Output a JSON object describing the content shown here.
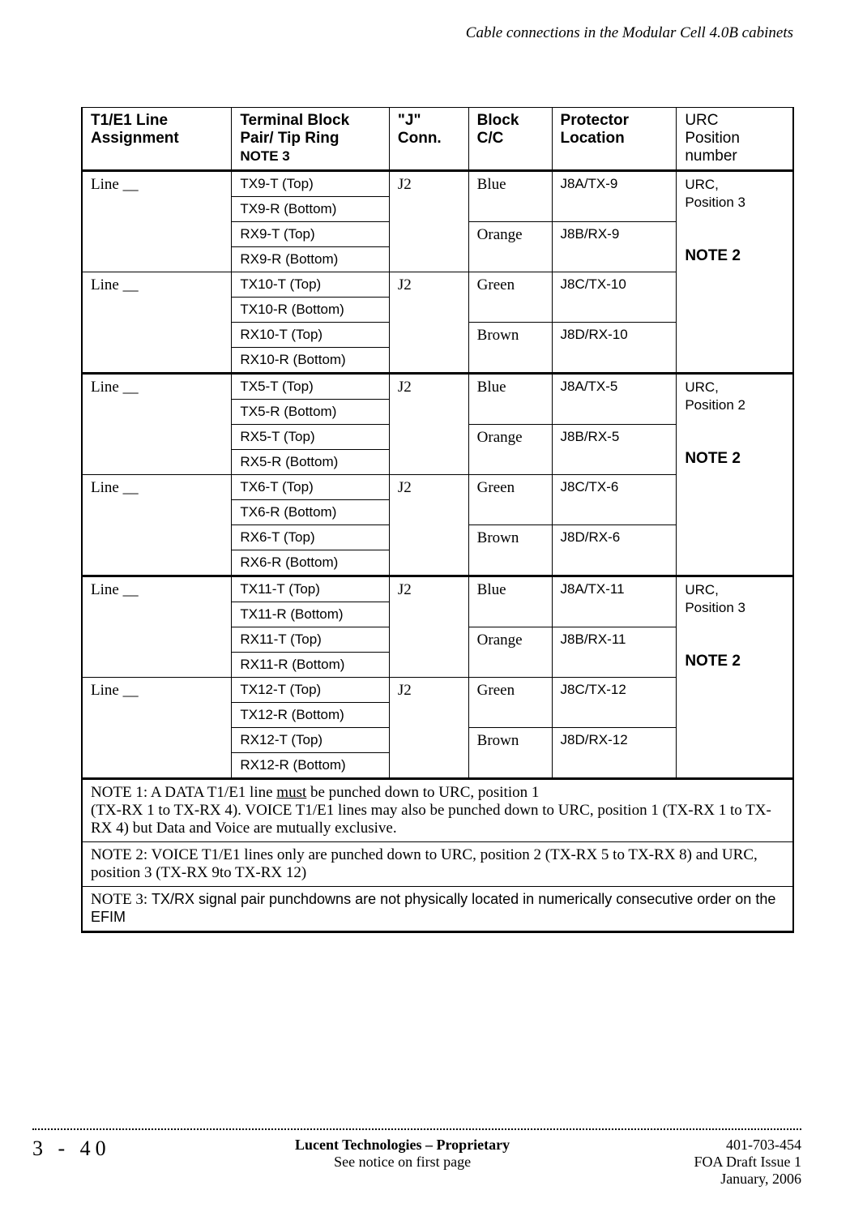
{
  "header": {
    "section_title": "Cable connections in the Modular Cell 4.0B cabinets"
  },
  "columns": {
    "c1": "T1/E1 Line Assignment",
    "c2a": "Terminal Block Pair/ Tip Ring",
    "c2b": "NOTE 3",
    "c3": "\"J\" Conn.",
    "c4": "Block C/C",
    "c5": "Protector Location",
    "c6a": "URC",
    "c6b": "Position",
    "c6c": "number"
  },
  "groups": [
    {
      "line": "Line __",
      "tb": [
        "TX9-T (Top)",
        "TX9-R (Bottom)",
        "RX9-T (Top)",
        "RX9-R (Bottom)"
      ],
      "j": "J2",
      "cc": [
        "Blue",
        "Orange"
      ],
      "prot": [
        "J8A/TX-9",
        "J8B/RX-9"
      ],
      "urc_lines": [
        "URC,",
        "Position 3",
        "",
        "NOTE 2"
      ],
      "urc_span": 8,
      "section_top": true
    },
    {
      "line": "Line __",
      "tb": [
        "TX10-T (Top)",
        "TX10-R (Bottom)",
        "RX10-T (Top)",
        "RX10-R (Bottom)"
      ],
      "j": "J2",
      "cc": [
        "Green",
        "Brown"
      ],
      "prot": [
        "J8C/TX-10",
        "J8D/RX-10"
      ]
    },
    {
      "line": "Line __",
      "tb": [
        "TX5-T (Top)",
        "TX5-R (Bottom)",
        "RX5-T (Top)",
        "RX5-R (Bottom)"
      ],
      "j": "J2",
      "cc": [
        "Blue",
        "Orange"
      ],
      "prot": [
        "J8A/TX-5",
        "J8B/RX-5"
      ],
      "urc_lines": [
        "URC,",
        "Position 2",
        "",
        "NOTE 2"
      ],
      "urc_span": 8,
      "section_top": true
    },
    {
      "line": "Line __",
      "tb": [
        "TX6-T (Top)",
        "TX6-R (Bottom)",
        "RX6-T (Top)",
        "RX6-R (Bottom)"
      ],
      "j": "J2",
      "cc": [
        "Green",
        "Brown"
      ],
      "prot": [
        "J8C/TX-6",
        "J8D/RX-6"
      ]
    },
    {
      "line": "Line __",
      "tb": [
        "TX11-T (Top)",
        "TX11-R (Bottom)",
        "RX11-T (Top)",
        "RX11-R (Bottom)"
      ],
      "j": "J2",
      "cc": [
        "Blue",
        "Orange"
      ],
      "prot": [
        "J8A/TX-11",
        "J8B/RX-11"
      ],
      "urc_lines": [
        "URC,",
        "Position 3",
        "",
        "NOTE 2"
      ],
      "urc_span": 8,
      "section_top": true
    },
    {
      "line": "Line __",
      "tb": [
        "TX12-T (Top)",
        "TX12-R (Bottom)",
        "RX12-T (Top)",
        "RX12-R (Bottom)"
      ],
      "j": "J2",
      "cc": [
        "Green",
        "Brown"
      ],
      "prot": [
        "J8C/TX-12",
        "J8D/RX-12"
      ]
    }
  ],
  "notes": {
    "n1a": "NOTE 1: A DATA T1/E1 line ",
    "n1u": "must",
    "n1b": " be punched down to URC, position 1",
    "n1c": "(TX-RX 1 to TX-RX 4). VOICE T1/E1 lines may also be punched down to URC, position 1 (TX-RX 1 to TX-RX 4) but Data and Voice are mutually exclusive.",
    "n2": "NOTE 2: VOICE T1/E1 lines only are punched down to URC, position 2 (TX-RX 5 to TX-RX 8) and URC, position 3 (TX-RX 9to TX-RX 12)",
    "n3a": "NOTE 3: ",
    "n3b": "TX/RX signal pair punchdowns are not physically located in numerically consecutive order on the EFIM"
  },
  "footer": {
    "page": "3 - 40",
    "center1": "Lucent Technologies – Proprietary",
    "center2": "See notice on first page",
    "right1": "401-703-454",
    "right2": "FOA Draft Issue 1",
    "right3": "January, 2006"
  }
}
